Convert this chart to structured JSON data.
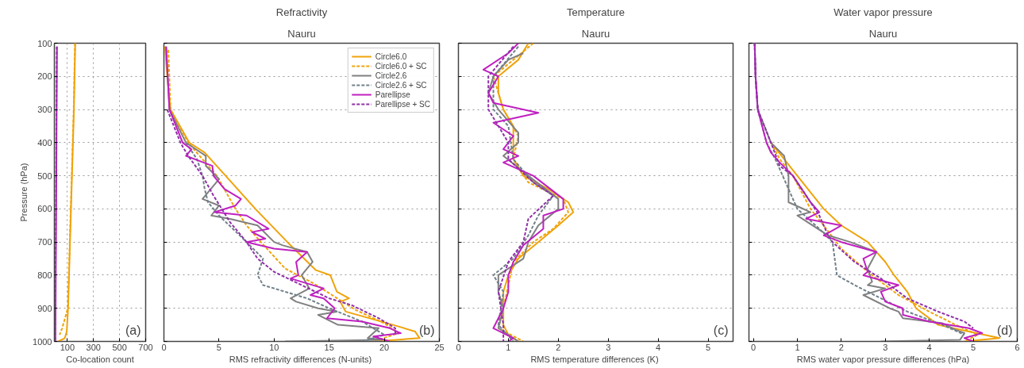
{
  "chart_data": [
    {
      "type": "line",
      "xlabel": "Co-location count",
      "ylabel": "Pressure (hPa)",
      "xlim": [
        0,
        700
      ],
      "ylim": [
        1000,
        100
      ],
      "xticks": [
        100,
        300,
        500,
        700
      ],
      "yticks": [
        100,
        200,
        300,
        400,
        500,
        600,
        700,
        800,
        900,
        1000
      ],
      "grid": true,
      "annotations": [
        "(a)"
      ],
      "series": [
        {
          "color": "#f0a30a",
          "line_style": "solid",
          "x": [
            160,
            150,
            135,
            120,
            105,
            95,
            80,
            30
          ],
          "values": [
            100,
            300,
            500,
            700,
            900,
            970,
            990,
            1000
          ]
        },
        {
          "color": "#f0a30a",
          "line_style": "dashed",
          "x": [
            158,
            148,
            133,
            118,
            103,
            60,
            40
          ],
          "values": [
            100,
            300,
            500,
            700,
            900,
            960,
            980
          ]
        },
        {
          "color": "#c020c0",
          "line_style": "solid",
          "x": [
            20,
            15,
            8
          ],
          "values": [
            110,
            500,
            1000
          ]
        },
        {
          "color": "#9030a8",
          "line_style": "dashed",
          "x": [
            18,
            13,
            6
          ],
          "values": [
            110,
            500,
            1000
          ]
        }
      ]
    },
    {
      "type": "line",
      "title": "Refractivity",
      "subtitle": "Nauru",
      "xlabel": "RMS  refractivity differences (N-units)",
      "xlim": [
        0,
        25
      ],
      "ylim": [
        1000,
        100
      ],
      "xticks": [
        0,
        5,
        10,
        15,
        20,
        25
      ],
      "yticks": [
        100,
        200,
        300,
        400,
        500,
        600,
        700,
        800,
        900,
        1000
      ],
      "grid": "y",
      "tick_labels": "x",
      "legend": "top right",
      "annotations": [
        "(b)"
      ],
      "series": [
        {
          "name": "Circle6.0",
          "color": "#f0a30a",
          "line_style": "solid",
          "x": [
            0.1,
            0.3,
            0.6,
            2.3,
            3.7,
            5.6,
            8.3,
            11.2,
            13.8,
            15.1,
            15.7,
            16.8,
            16,
            16.5,
            20.8,
            22.8,
            23.2,
            19.1
          ],
          "values": [
            110,
            200,
            300,
            400,
            430,
            500,
            600,
            700,
            785,
            800,
            850,
            870,
            880,
            910,
            950,
            970,
            990,
            1000
          ]
        },
        {
          "name": "Circle6.0 + SC",
          "color": "#f0a30a",
          "line_style": "dashed",
          "x": [
            0.4,
            0.6,
            2.2,
            3.5,
            4.8,
            6.5,
            7.5,
            8.8,
            11,
            13.6,
            17.4,
            20,
            21.3,
            19
          ],
          "values": [
            120,
            300,
            400,
            450,
            500,
            600,
            650,
            700,
            780,
            825,
            905,
            945,
            975,
            1000
          ]
        },
        {
          "name": "Circle2.6",
          "color": "#808080",
          "line_style": "solid",
          "x": [
            0.2,
            0.5,
            2,
            3.8,
            3.8,
            5,
            3.5,
            5,
            4.3,
            6,
            8.5,
            10,
            10.8,
            13,
            13.5,
            12.5,
            13.2,
            11.5,
            12,
            14,
            15.7,
            14,
            15.8,
            19.5,
            18.5,
            19.8,
            11
          ],
          "values": [
            110,
            300,
            400,
            440,
            470,
            510,
            570,
            590,
            620,
            630,
            650,
            700,
            710,
            730,
            760,
            800,
            840,
            870,
            880,
            900,
            910,
            920,
            950,
            960,
            990,
            995,
            1000
          ]
        },
        {
          "name": "Circle2.6 + SC",
          "color": "#70808a",
          "line_style": "dashed",
          "x": [
            2,
            3,
            3.5,
            3.7,
            4,
            5,
            7.5,
            9,
            8.5,
            9,
            13,
            15,
            18,
            20,
            18
          ],
          "values": [
            400,
            450,
            500,
            540,
            580,
            620,
            700,
            750,
            800,
            830,
            870,
            900,
            940,
            980,
            1000
          ]
        },
        {
          "name": "Parellipse",
          "color": "#c020c0",
          "line_style": "solid",
          "x": [
            0.2,
            0.5,
            1.7,
            2.5,
            2,
            4.4,
            4.5,
            5.5,
            7,
            6.5,
            4.6,
            7.5,
            9.5,
            8,
            9.2,
            7.5,
            10,
            13,
            12,
            12.2,
            11.5,
            14.5,
            13.3,
            14.5,
            15.5,
            14.8,
            18,
            20.5,
            21.5,
            19,
            20.5
          ],
          "values": [
            110,
            300,
            400,
            420,
            440,
            470,
            500,
            540,
            570,
            590,
            610,
            620,
            660,
            670,
            690,
            700,
            720,
            730,
            760,
            800,
            810,
            840,
            860,
            870,
            900,
            930,
            940,
            960,
            975,
            985,
            1000
          ]
        },
        {
          "name": "Parellipse + SC",
          "color": "#9030a8",
          "line_style": "dashed",
          "x": [
            0.3,
            1.5,
            2.2,
            3.5,
            4.5,
            6,
            7.5,
            8.5,
            10,
            12.5,
            15,
            17,
            19.5,
            21,
            21
          ],
          "values": [
            300,
            400,
            440,
            500,
            560,
            640,
            700,
            750,
            790,
            830,
            870,
            890,
            930,
            960,
            980
          ]
        }
      ]
    },
    {
      "type": "line",
      "title": "Temperature",
      "subtitle": "Nauru",
      "xlabel": "RMS  temperature differences (K)",
      "xlim": [
        0,
        5.5
      ],
      "ylim": [
        1000,
        100
      ],
      "xticks": [
        0,
        1,
        2,
        3,
        4,
        5
      ],
      "yticks": [
        100,
        200,
        300,
        400,
        500,
        600,
        700,
        800,
        900,
        1000
      ],
      "grid": "y",
      "tick_labels": "x",
      "annotations": [
        "(c)"
      ],
      "series": [
        {
          "color": "#f0a30a",
          "line_style": "solid",
          "x": [
            1.4,
            1.2,
            0.8,
            0.8,
            0.9,
            1.1,
            1.1,
            1.1,
            1.3,
            1.8,
            2.2,
            2.3,
            2.0,
            1.6,
            1.2,
            1.0,
            0.9,
            0.9,
            0.9,
            1.0,
            1.2
          ],
          "values": [
            100,
            150,
            200,
            250,
            300,
            350,
            400,
            450,
            500,
            540,
            580,
            610,
            650,
            700,
            750,
            800,
            850,
            900,
            950,
            980,
            1000
          ]
        },
        {
          "color": "#f0a30a",
          "line_style": "dashed",
          "x": [
            1.5,
            1.1,
            0.7,
            0.9,
            1.2,
            1.1,
            1.4,
            2.1,
            2.2,
            1.9,
            1.5,
            1.1,
            1.0,
            0.9,
            0.8,
            1.3
          ],
          "values": [
            100,
            150,
            200,
            300,
            380,
            450,
            520,
            570,
            610,
            660,
            700,
            760,
            830,
            900,
            960,
            1000
          ]
        },
        {
          "color": "#808080",
          "line_style": "solid",
          "x": [
            1.3,
            1.0,
            0.7,
            0.6,
            0.8,
            1.2,
            1.2,
            0.9,
            1.4,
            2.0,
            2.0,
            1.6,
            1.4,
            1.3,
            0.8,
            0.8,
            0.9,
            0.8,
            1.2
          ],
          "values": [
            130,
            150,
            200,
            250,
            300,
            370,
            400,
            440,
            500,
            570,
            600,
            650,
            700,
            750,
            800,
            850,
            900,
            960,
            1000
          ]
        },
        {
          "color": "#70808a",
          "line_style": "dashed",
          "x": [
            1.2,
            0.7,
            0.7,
            1.0,
            1.1,
            1.5,
            1.9,
            1.6,
            1.4,
            1.1,
            0.7,
            0.9,
            0.8,
            1.1
          ],
          "values": [
            110,
            200,
            300,
            350,
            450,
            520,
            560,
            620,
            680,
            750,
            800,
            850,
            950,
            1000
          ]
        },
        {
          "color": "#c020c0",
          "line_style": "solid",
          "x": [
            1.2,
            1.0,
            0.5,
            0.8,
            0.6,
            0.7,
            1.6,
            0.7,
            1.1,
            0.9,
            1.2,
            0.9,
            1.5,
            2.1,
            2.1,
            1.7,
            1.7,
            1.3,
            1.1,
            1.0,
            1.0,
            0.9,
            0.7,
            1.1,
            1.0
          ],
          "values": [
            100,
            130,
            180,
            200,
            250,
            280,
            310,
            340,
            380,
            420,
            440,
            460,
            500,
            570,
            600,
            620,
            660,
            710,
            760,
            800,
            850,
            900,
            960,
            990,
            1000
          ]
        },
        {
          "color": "#9030a8",
          "line_style": "dashed",
          "x": [
            1.1,
            0.6,
            0.6,
            1.0,
            1.0,
            1.5,
            1.9,
            1.4,
            1.3,
            1.0,
            0.8,
            0.9,
            0.9
          ],
          "values": [
            110,
            200,
            300,
            400,
            450,
            520,
            560,
            630,
            700,
            760,
            850,
            950,
            1000
          ]
        }
      ]
    },
    {
      "type": "line",
      "title": "Water vapor pressure",
      "subtitle": "Nauru",
      "xlabel": "RMS water vapor pressure differences (hPa)",
      "xlim": [
        -0.1,
        6
      ],
      "ylim": [
        1000,
        100
      ],
      "xticks": [
        0,
        1,
        2,
        3,
        4,
        5,
        6
      ],
      "yticks": [
        100,
        200,
        300,
        400,
        500,
        600,
        700,
        800,
        900,
        1000
      ],
      "grid": "y",
      "tick_labels": "x",
      "annotations": [
        "(d)"
      ],
      "series": [
        {
          "color": "#f0a30a",
          "line_style": "solid",
          "x": [
            0.4,
            0.7,
            1.0,
            1.6,
            2.0,
            2.6,
            3.0,
            3.2,
            3.5,
            3.7,
            4.2,
            4.9,
            5.6,
            4.8
          ],
          "values": [
            400,
            450,
            500,
            600,
            650,
            700,
            760,
            800,
            850,
            900,
            950,
            970,
            990,
            1000
          ]
        },
        {
          "color": "#f0a30a",
          "line_style": "dashed",
          "x": [
            0.4,
            0.6,
            0.9,
            1.3,
            1.6,
            2.0,
            2.6,
            3.3,
            4.0,
            4.6,
            5.1,
            4.8
          ],
          "values": [
            400,
            450,
            500,
            600,
            650,
            720,
            790,
            860,
            910,
            950,
            980,
            1000
          ]
        },
        {
          "color": "#808080",
          "line_style": "solid",
          "x": [
            0.03,
            0.05,
            0.1,
            0.4,
            0.7,
            0.8,
            0.8,
            1.3,
            1.0,
            1.7,
            2.2,
            2.8,
            2.6,
            2.7,
            2.6,
            3.0,
            2.5,
            3.1,
            3.3,
            3.4,
            4.3,
            4.6,
            4.8,
            4.7,
            2.9
          ],
          "values": [
            100,
            200,
            300,
            400,
            440,
            500,
            580,
            610,
            620,
            680,
            700,
            730,
            780,
            820,
            830,
            840,
            860,
            900,
            910,
            930,
            945,
            965,
            975,
            995,
            1000
          ]
        },
        {
          "color": "#70808a",
          "line_style": "dashed",
          "x": [
            0.03,
            0.05,
            0.1,
            0.3,
            0.5,
            0.8,
            1.0,
            1.5,
            1.8,
            1.9,
            2.3,
            2.9,
            3.5,
            4.3,
            4.8
          ],
          "values": [
            100,
            200,
            300,
            400,
            450,
            540,
            600,
            660,
            700,
            800,
            830,
            870,
            910,
            950,
            980
          ]
        },
        {
          "color": "#c020c0",
          "line_style": "solid",
          "x": [
            0.03,
            0.05,
            0.1,
            0.3,
            0.4,
            0.6,
            0.9,
            1.1,
            1.3,
            1.5,
            1.2,
            2.0,
            1.6,
            2.0,
            2.8,
            2.5,
            2.6,
            2.5,
            3.3,
            2.9,
            3.0,
            3.4,
            3.4,
            4.0,
            4.9,
            5.2,
            4.8,
            5.0
          ],
          "values": [
            100,
            200,
            300,
            400,
            430,
            460,
            500,
            540,
            580,
            610,
            630,
            650,
            680,
            700,
            730,
            750,
            790,
            800,
            830,
            850,
            880,
            900,
            920,
            940,
            960,
            975,
            990,
            1000
          ]
        },
        {
          "color": "#9030a8",
          "line_style": "dashed",
          "x": [
            0.03,
            0.05,
            0.1,
            0.4,
            0.6,
            0.9,
            1.2,
            1.5,
            1.7,
            1.8,
            2.3,
            2.9,
            3.5,
            4.2,
            4.8,
            5.0
          ],
          "values": [
            100,
            200,
            300,
            400,
            470,
            500,
            560,
            620,
            680,
            700,
            760,
            810,
            870,
            910,
            940,
            960
          ]
        }
      ]
    }
  ]
}
